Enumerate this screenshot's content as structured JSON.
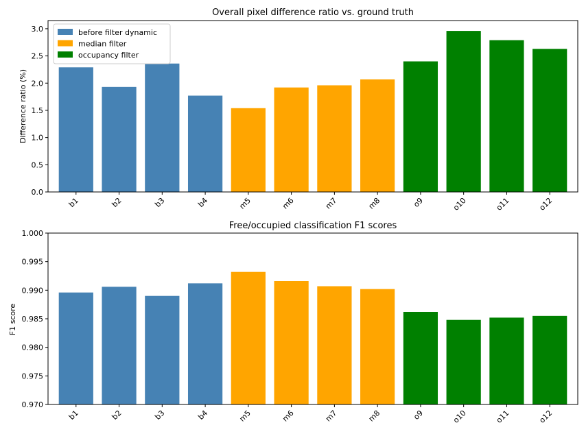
{
  "chart_data": [
    {
      "type": "bar",
      "title": "Overall pixel difference ratio vs. ground truth",
      "xlabel": "",
      "ylabel": "Difference ratio (%)",
      "ylim": [
        0,
        3.15
      ],
      "yticks": [
        0.0,
        0.5,
        1.0,
        1.5,
        2.0,
        2.5,
        3.0
      ],
      "ytick_labels": [
        "0.0",
        "0.5",
        "1.0",
        "1.5",
        "2.0",
        "2.5",
        "3.0"
      ],
      "categories": [
        "b1",
        "b2",
        "b3",
        "b4",
        "m5",
        "m6",
        "m7",
        "m8",
        "o9",
        "o10",
        "o11",
        "o12"
      ],
      "values": [
        2.29,
        1.93,
        2.36,
        1.77,
        1.54,
        1.92,
        1.96,
        2.07,
        2.4,
        2.96,
        2.79,
        2.63
      ],
      "groups": [
        "before",
        "before",
        "before",
        "before",
        "median",
        "median",
        "median",
        "median",
        "occupancy",
        "occupancy",
        "occupancy",
        "occupancy"
      ],
      "legend": {
        "placement": "top-left",
        "entries": [
          {
            "key": "before",
            "label": "before filter dynamic",
            "color": "#4682b4"
          },
          {
            "key": "median",
            "label": "median filter",
            "color": "#ffa500"
          },
          {
            "key": "occupancy",
            "label": "occupancy filter",
            "color": "#008000"
          }
        ]
      },
      "grid": false
    },
    {
      "type": "bar",
      "title": "Free/occupied classification F1 scores",
      "xlabel": "",
      "ylabel": "F1 score",
      "ylim": [
        0.97,
        1.0
      ],
      "yticks": [
        0.97,
        0.975,
        0.98,
        0.985,
        0.99,
        0.995,
        1.0
      ],
      "ytick_labels": [
        "0.970",
        "0.975",
        "0.980",
        "0.985",
        "0.990",
        "0.995",
        "1.000"
      ],
      "categories": [
        "b1",
        "b2",
        "b3",
        "b4",
        "m5",
        "m6",
        "m7",
        "m8",
        "o9",
        "o10",
        "o11",
        "o12"
      ],
      "values": [
        0.9896,
        0.9906,
        0.989,
        0.9912,
        0.9932,
        0.9916,
        0.9907,
        0.9902,
        0.9862,
        0.9848,
        0.9852,
        0.9855
      ],
      "groups": [
        "before",
        "before",
        "before",
        "before",
        "median",
        "median",
        "median",
        "median",
        "occupancy",
        "occupancy",
        "occupancy",
        "occupancy"
      ],
      "grid": false
    }
  ],
  "colors": {
    "before": "#4682b4",
    "median": "#ffa500",
    "occupancy": "#008000"
  }
}
